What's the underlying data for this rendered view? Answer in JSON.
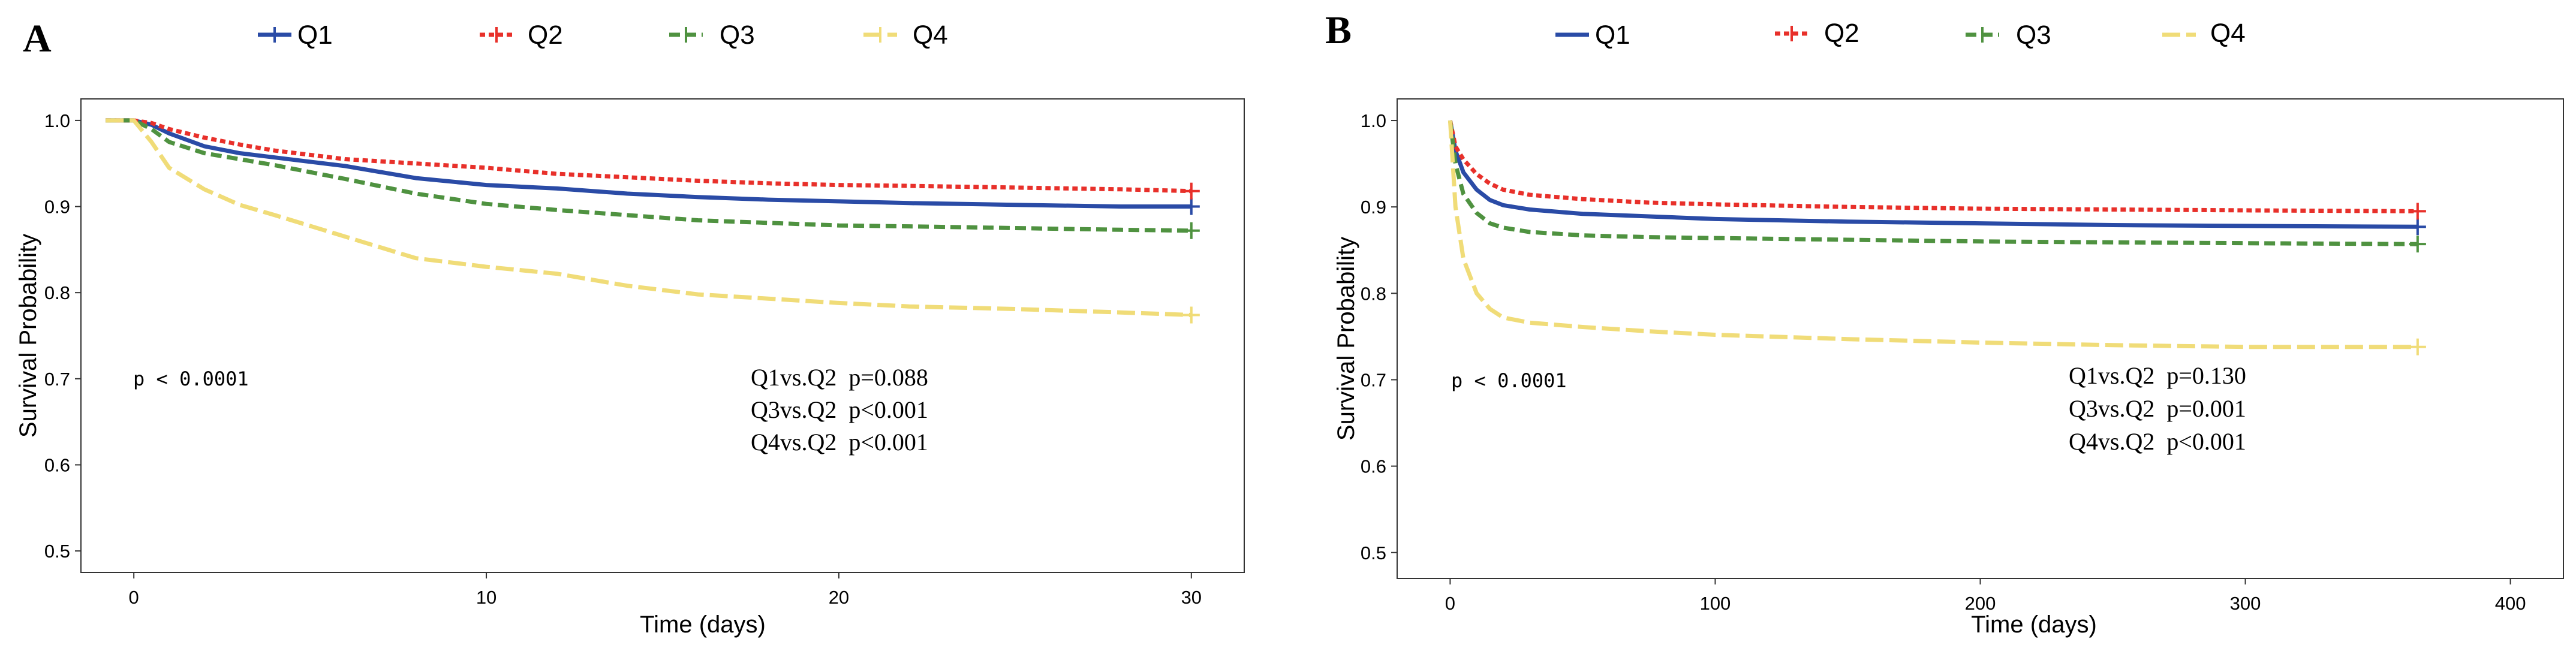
{
  "colors": {
    "Q1": "#2A4BA6",
    "Q2": "#E8302A",
    "Q3": "#4F9240",
    "Q4": "#F0DC78"
  },
  "chart_data": [
    {
      "panel": "A",
      "type": "line",
      "xlabel": "Time (days)",
      "ylabel": "Survival Probability",
      "xlim": [
        -1.5,
        31.5
      ],
      "ylim": [
        0.475,
        1.025
      ],
      "xticks": [
        0,
        10,
        20,
        30
      ],
      "yticks": [
        0.5,
        0.6,
        0.7,
        0.8,
        0.9,
        1.0
      ],
      "ytick_labels": [
        "0.5",
        "0.6",
        "0.7",
        "0.8",
        "0.9",
        "1.0"
      ],
      "pvalue_text": "p < 0.0001",
      "comparisons": [
        "Q1vs.Q2  p=0.088",
        "Q3vs.Q2  p<0.001",
        "Q4vs.Q2  p<0.001"
      ],
      "series": [
        {
          "name": "Q1",
          "dash": "solid",
          "x": [
            -0.8,
            0,
            0.5,
            1,
            2,
            3,
            4,
            6,
            8,
            10,
            12,
            14,
            16,
            18,
            20,
            22,
            25,
            28,
            30
          ],
          "y": [
            1.0,
            1.0,
            0.995,
            0.985,
            0.97,
            0.962,
            0.957,
            0.947,
            0.933,
            0.925,
            0.921,
            0.915,
            0.911,
            0.908,
            0.906,
            0.904,
            0.902,
            0.9,
            0.9
          ]
        },
        {
          "name": "Q2",
          "dash": "dotted",
          "x": [
            -0.8,
            0,
            0.5,
            1,
            2,
            3,
            4,
            6,
            8,
            10,
            12,
            14,
            16,
            18,
            20,
            22,
            25,
            28,
            30
          ],
          "y": [
            1.0,
            1.0,
            0.997,
            0.99,
            0.98,
            0.972,
            0.965,
            0.955,
            0.95,
            0.945,
            0.938,
            0.934,
            0.93,
            0.927,
            0.925,
            0.924,
            0.922,
            0.92,
            0.918
          ]
        },
        {
          "name": "Q3",
          "dash": "dashed",
          "x": [
            -0.8,
            0,
            0.5,
            1,
            2,
            3,
            4,
            6,
            8,
            10,
            12,
            14,
            16,
            18,
            20,
            22,
            25,
            28,
            30
          ],
          "y": [
            1.0,
            1.0,
            0.99,
            0.975,
            0.962,
            0.955,
            0.948,
            0.932,
            0.915,
            0.903,
            0.896,
            0.89,
            0.884,
            0.881,
            0.878,
            0.877,
            0.875,
            0.873,
            0.872
          ]
        },
        {
          "name": "Q4",
          "dash": "longdash",
          "x": [
            -0.8,
            0,
            0.5,
            1,
            2,
            3,
            4,
            6,
            8,
            10,
            12,
            14,
            16,
            18,
            20,
            22,
            25,
            28,
            30
          ],
          "y": [
            1.0,
            1.0,
            0.975,
            0.945,
            0.92,
            0.902,
            0.89,
            0.865,
            0.84,
            0.83,
            0.822,
            0.808,
            0.798,
            0.793,
            0.788,
            0.784,
            0.781,
            0.777,
            0.774
          ]
        }
      ]
    },
    {
      "panel": "B",
      "type": "line",
      "xlabel": "Time (days)",
      "ylabel": "Survival Probability",
      "xlim": [
        -20,
        420
      ],
      "ylim": [
        0.47,
        1.025
      ],
      "xticks": [
        0,
        100,
        200,
        300,
        400
      ],
      "yticks": [
        0.5,
        0.6,
        0.7,
        0.8,
        0.9,
        1.0
      ],
      "ytick_labels": [
        "0.5",
        "0.6",
        "0.7",
        "0.8",
        "0.9",
        "1.0"
      ],
      "pvalue_text": "p < 0.0001",
      "comparisons": [
        "Q1vs.Q2  p=0.130",
        "Q3vs.Q2  p=0.001",
        "Q4vs.Q2  p<0.001"
      ],
      "series": [
        {
          "name": "Q1",
          "dash": "solid",
          "x": [
            0,
            2,
            5,
            10,
            15,
            20,
            30,
            50,
            75,
            100,
            150,
            200,
            250,
            300,
            365
          ],
          "y": [
            1.0,
            0.965,
            0.94,
            0.92,
            0.908,
            0.902,
            0.897,
            0.892,
            0.889,
            0.886,
            0.883,
            0.881,
            0.879,
            0.878,
            0.877
          ]
        },
        {
          "name": "Q2",
          "dash": "dotted",
          "x": [
            0,
            2,
            5,
            10,
            15,
            20,
            30,
            50,
            75,
            100,
            150,
            200,
            250,
            300,
            365
          ],
          "y": [
            1.0,
            0.97,
            0.955,
            0.938,
            0.927,
            0.92,
            0.914,
            0.909,
            0.905,
            0.903,
            0.9,
            0.898,
            0.897,
            0.896,
            0.895
          ]
        },
        {
          "name": "Q3",
          "dash": "dashed",
          "x": [
            0,
            2,
            5,
            10,
            15,
            20,
            30,
            50,
            75,
            100,
            150,
            200,
            250,
            300,
            365
          ],
          "y": [
            1.0,
            0.95,
            0.915,
            0.893,
            0.881,
            0.876,
            0.871,
            0.867,
            0.865,
            0.864,
            0.862,
            0.86,
            0.859,
            0.858,
            0.857
          ]
        },
        {
          "name": "Q4",
          "dash": "longdash",
          "x": [
            0,
            2,
            5,
            10,
            15,
            20,
            30,
            50,
            75,
            100,
            150,
            200,
            250,
            300,
            365
          ],
          "y": [
            1.0,
            0.9,
            0.84,
            0.8,
            0.782,
            0.772,
            0.766,
            0.761,
            0.756,
            0.752,
            0.747,
            0.743,
            0.74,
            0.738,
            0.738
          ]
        }
      ]
    }
  ]
}
